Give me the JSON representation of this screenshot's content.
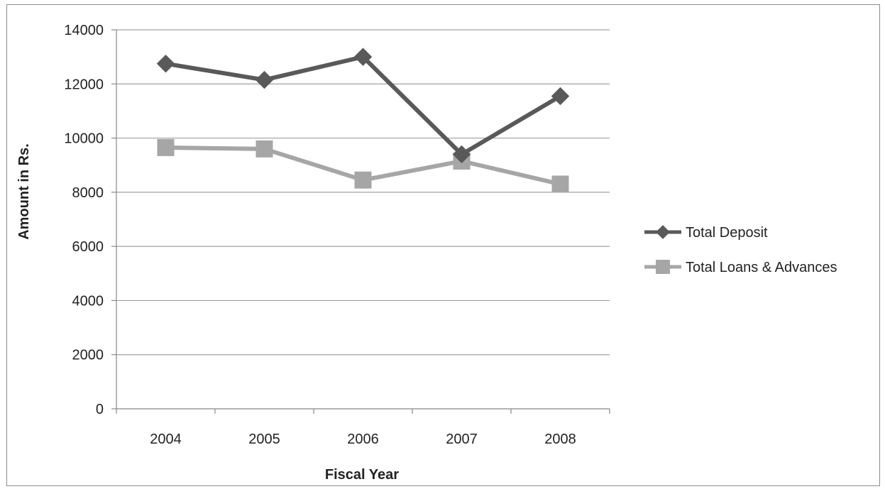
{
  "chart_data": {
    "type": "line",
    "categories": [
      "2004",
      "2005",
      "2006",
      "2007",
      "2008"
    ],
    "series": [
      {
        "name": "Total Deposit",
        "values": [
          12750,
          12150,
          13000,
          9400,
          11550
        ],
        "color": "#595959",
        "marker": "diamond"
      },
      {
        "name": "Total Loans & Advances",
        "values": [
          9650,
          9600,
          8450,
          9150,
          8300
        ],
        "color": "#a6a6a6",
        "marker": "square"
      }
    ],
    "xlabel": "Fiscal Year",
    "ylabel": "Amount in Rs.",
    "ylim": [
      0,
      14000
    ],
    "yticks": [
      "0",
      "2000",
      "4000",
      "6000",
      "8000",
      "10000",
      "12000",
      "14000"
    ],
    "grid": true,
    "legend_position": "right"
  }
}
